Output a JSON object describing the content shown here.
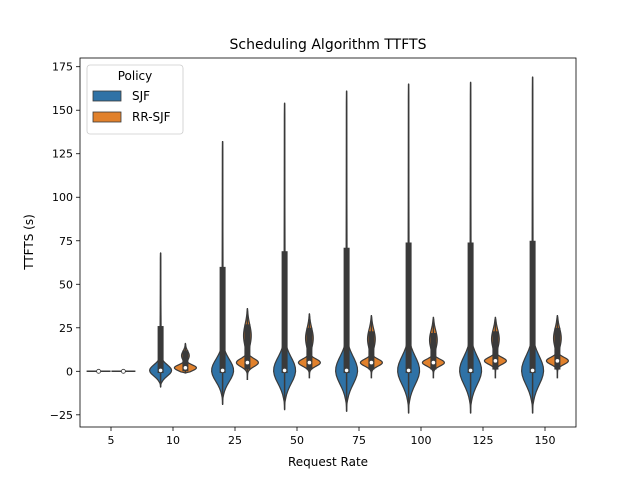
{
  "chart_data": {
    "type": "violin",
    "title": "Scheduling Algorithm TTFTS",
    "xlabel": "Request Rate",
    "ylabel": "TTFTS (s)",
    "categories": [
      "5",
      "10",
      "25",
      "50",
      "75",
      "100",
      "125",
      "150"
    ],
    "ylim": [
      -32,
      180
    ],
    "yticks": [
      -25,
      0,
      25,
      50,
      75,
      100,
      125,
      150,
      175
    ],
    "ytick_labels": [
      "−25",
      "0",
      "25",
      "50",
      "75",
      "100",
      "125",
      "150",
      "175"
    ],
    "grid": false,
    "legend": {
      "title": "Policy",
      "placement": "top-left",
      "entries": [
        "SJF",
        "RR-SJF"
      ]
    },
    "series": [
      {
        "name": "SJF",
        "color": "#2f72a6",
        "stats": [
          {
            "min": 0,
            "q1": 0,
            "median": 0,
            "q3": 0,
            "max": 0
          },
          {
            "min": -9,
            "q1": -1,
            "median": 0.5,
            "q3": 26,
            "max": 68
          },
          {
            "min": -19,
            "q1": -1,
            "median": 0.5,
            "q3": 60,
            "max": 132
          },
          {
            "min": -22,
            "q1": -1,
            "median": 0.5,
            "q3": 69,
            "max": 154
          },
          {
            "min": -23,
            "q1": -1,
            "median": 0.5,
            "q3": 71,
            "max": 161
          },
          {
            "min": -24,
            "q1": -1,
            "median": 0.5,
            "q3": 74,
            "max": 165
          },
          {
            "min": -24,
            "q1": -1,
            "median": 0.5,
            "q3": 74,
            "max": 166
          },
          {
            "min": -24,
            "q1": -1,
            "median": 0.5,
            "q3": 75,
            "max": 169
          }
        ]
      },
      {
        "name": "RR-SJF",
        "color": "#e1812c",
        "stats": [
          {
            "min": 0,
            "q1": 0,
            "median": 0,
            "q3": 0,
            "max": 0
          },
          {
            "min": -1,
            "q1": 0,
            "median": 2,
            "q3": 12,
            "max": 16
          },
          {
            "min": -5,
            "q1": 1,
            "median": 5,
            "q3": 27,
            "max": 36
          },
          {
            "min": -4,
            "q1": 1,
            "median": 5,
            "q3": 25,
            "max": 33
          },
          {
            "min": -4,
            "q1": 1,
            "median": 5,
            "q3": 23,
            "max": 32
          },
          {
            "min": -4,
            "q1": 1,
            "median": 5,
            "q3": 22,
            "max": 31
          },
          {
            "min": -4,
            "q1": 1,
            "median": 6,
            "q3": 23,
            "max": 31
          },
          {
            "min": -4,
            "q1": 1,
            "median": 6,
            "q3": 25,
            "max": 32
          }
        ]
      }
    ]
  }
}
